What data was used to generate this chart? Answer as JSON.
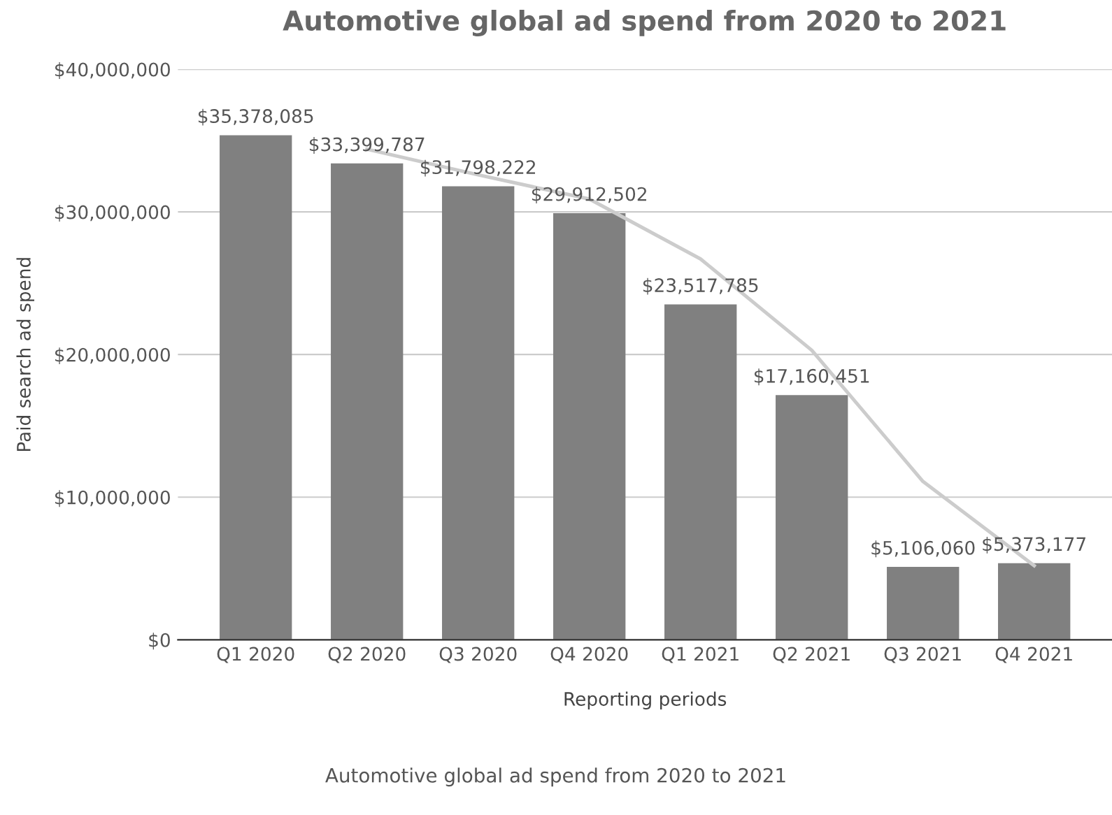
{
  "chart_data": {
    "type": "bar",
    "title": "Automotive global ad spend from 2020 to 2021",
    "xlabel": "Reporting periods",
    "ylabel": "Paid search ad spend",
    "categories": [
      "Q1 2020",
      "Q2 2020",
      "Q3 2020",
      "Q4 2020",
      "Q1 2021",
      "Q2 2021",
      "Q3 2021",
      "Q4 2021"
    ],
    "series": [
      {
        "color": "#808080",
        "values": [
          35378085,
          33399787,
          31798222,
          29912502,
          23517785,
          17160451,
          5106060,
          5373177
        ],
        "value_labels": [
          "$35,378,085",
          "$33,399,787",
          "$31,798,222",
          "$29,912,502",
          "$23,517,785",
          "$17,160,451",
          "$5,106,060",
          "$5,373,177"
        ]
      },
      {
        "type": "line",
        "color": "#cccccc",
        "values": [
          null,
          34400000,
          32600000,
          30900000,
          26700000,
          20300000,
          11100000,
          5200000
        ]
      }
    ],
    "ylim": [
      0,
      40000000
    ],
    "yticks": [
      {
        "value": 0,
        "label": "$0"
      },
      {
        "value": 10000000,
        "label": "$10,000,000"
      },
      {
        "value": 20000000,
        "label": "$20,000,000"
      },
      {
        "value": 30000000,
        "label": "$30,000,000"
      },
      {
        "value": 40000000,
        "label": "$40,000,000"
      }
    ],
    "grid": "y",
    "legend": false,
    "annotations": [
      "Automotive global ad spend from 2020 to 2021"
    ]
  }
}
